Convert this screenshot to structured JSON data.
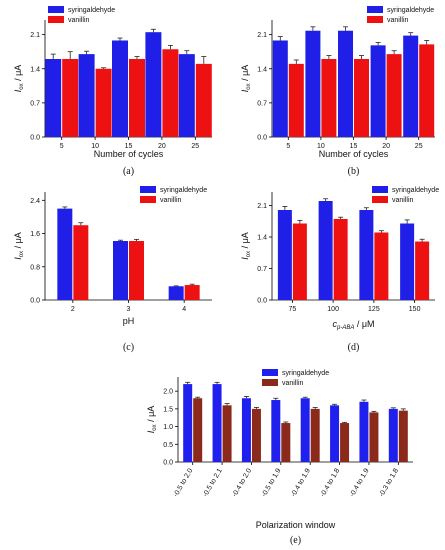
{
  "chart_data": [
    {
      "id": "a",
      "type": "bar",
      "panel_label": "(a)",
      "xlabel": "Number of cycles",
      "ylabel": "I",
      "ylabel_sub": "ox",
      "ylabel_unit": " / μA",
      "ylim": [
        0,
        2.4
      ],
      "yticks": [
        "0.0",
        "0.7",
        "1.4",
        "2.1"
      ],
      "ytick_values": [
        0,
        0.7,
        1.4,
        2.1
      ],
      "categories": [
        "5",
        "10",
        "15",
        "20",
        "25"
      ],
      "legend_position": "top-left",
      "series": [
        {
          "name": "syringaldehyde",
          "color": "#1f1fe8",
          "values": [
            1.6,
            1.7,
            1.98,
            2.15,
            1.7
          ],
          "errors": [
            0.1,
            0.06,
            0.05,
            0.06,
            0.07
          ]
        },
        {
          "name": "vanillin",
          "color": "#ee1111",
          "values": [
            1.6,
            1.4,
            1.6,
            1.8,
            1.5
          ],
          "errors": [
            0.15,
            0.02,
            0.05,
            0.08,
            0.15
          ]
        }
      ]
    },
    {
      "id": "b",
      "type": "bar",
      "panel_label": "(b)",
      "xlabel": "Number of cycles",
      "ylabel": "I",
      "ylabel_sub": "ox",
      "ylabel_unit": " / μA",
      "ylim": [
        0,
        2.4
      ],
      "yticks": [
        "0.0",
        "0.7",
        "1.4",
        "2.1"
      ],
      "ytick_values": [
        0,
        0.7,
        1.4,
        2.1
      ],
      "categories": [
        "5",
        "10",
        "15",
        "20",
        "25"
      ],
      "legend_position": "top-right",
      "series": [
        {
          "name": "syringaldehyde",
          "color": "#1f1fe8",
          "values": [
            1.98,
            2.18,
            2.18,
            1.88,
            2.08
          ],
          "errors": [
            0.08,
            0.08,
            0.08,
            0.06,
            0.06
          ]
        },
        {
          "name": "vanillin",
          "color": "#ee1111",
          "values": [
            1.5,
            1.6,
            1.6,
            1.7,
            1.9
          ],
          "errors": [
            0.08,
            0.07,
            0.07,
            0.07,
            0.08
          ]
        }
      ]
    },
    {
      "id": "c",
      "type": "bar",
      "panel_label": "(c)",
      "xlabel": "pH",
      "ylabel": "I",
      "ylabel_sub": "ox",
      "ylabel_unit": " / μA",
      "ylim": [
        0,
        2.6
      ],
      "yticks": [
        "0.0",
        "0.8",
        "1.6",
        "2.4"
      ],
      "ytick_values": [
        0,
        0.8,
        1.6,
        2.4
      ],
      "categories": [
        "2",
        "3",
        "4"
      ],
      "legend_position": "top-right",
      "series": [
        {
          "name": "syringaldehyde",
          "color": "#1f1fe8",
          "values": [
            2.2,
            1.42,
            0.33
          ],
          "errors": [
            0.04,
            0.02,
            0.01
          ]
        },
        {
          "name": "vanillin",
          "color": "#ee1111",
          "values": [
            1.8,
            1.42,
            0.36
          ],
          "errors": [
            0.06,
            0.04,
            0.02
          ]
        }
      ]
    },
    {
      "id": "d",
      "type": "bar",
      "panel_label": "(d)",
      "xlabel": "c",
      "xlabel_sub": "p-ABA",
      "xlabel_unit": " / μM",
      "ylabel": "I",
      "ylabel_sub": "ox",
      "ylabel_unit": " / μA",
      "ylim": [
        0,
        2.4
      ],
      "yticks": [
        "0.0",
        "0.7",
        "1.4",
        "2.1"
      ],
      "ytick_values": [
        0,
        0.7,
        1.4,
        2.1
      ],
      "categories": [
        "75",
        "100",
        "125",
        "150"
      ],
      "legend_position": "top-right",
      "series": [
        {
          "name": "syringaldehyde",
          "color": "#1f1fe8",
          "values": [
            2.0,
            2.2,
            2.0,
            1.7
          ],
          "errors": [
            0.08,
            0.05,
            0.05,
            0.08
          ]
        },
        {
          "name": "vanillin",
          "color": "#ee1111",
          "values": [
            1.7,
            1.8,
            1.5,
            1.3
          ],
          "errors": [
            0.07,
            0.04,
            0.04,
            0.05
          ]
        }
      ]
    },
    {
      "id": "e",
      "type": "bar",
      "panel_label": "(e)",
      "xlabel": "Polarization window",
      "ylabel": "I",
      "ylabel_sub": "ox",
      "ylabel_unit": " / μA",
      "ylim": [
        0,
        2.4
      ],
      "yticks": [
        "0.0",
        "0.5",
        "1.0",
        "1.5",
        "2.0"
      ],
      "ytick_values": [
        0,
        0.5,
        1.0,
        1.5,
        2.0
      ],
      "categories": [
        "-0.5 to 2.0",
        "-0.5 to 2.1",
        "-0.4 to 2.0",
        "-0.5 to 1.9",
        "-0.4 to 1.9",
        "-0.4 to 1.8",
        "-0.4 to 1.9",
        "-0.3 to 1.8"
      ],
      "legend_position": "top-right",
      "series": [
        {
          "name": "syringaldehyde",
          "color": "#2020ee",
          "values": [
            2.2,
            2.2,
            1.8,
            1.75,
            1.8,
            1.6,
            1.7,
            1.5
          ],
          "errors": [
            0.05,
            0.05,
            0.05,
            0.05,
            0.03,
            0.03,
            0.05,
            0.03
          ]
        },
        {
          "name": "vanillin",
          "color": "#8b2a1a",
          "values": [
            1.8,
            1.6,
            1.5,
            1.1,
            1.5,
            1.1,
            1.4,
            1.45
          ],
          "errors": [
            0.03,
            0.05,
            0.04,
            0.03,
            0.04,
            0.02,
            0.03,
            0.05
          ]
        }
      ]
    }
  ]
}
